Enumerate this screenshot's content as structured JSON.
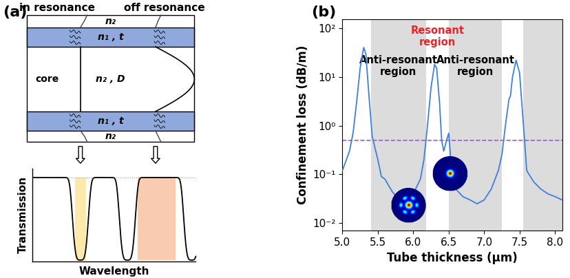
{
  "chart_data": {
    "type": "line",
    "panel_label": "(b)",
    "xlabel": "Tube thickness (μm)",
    "ylabel": "Confinement loss (dB/m)",
    "log": "y",
    "color": "#3d7fd9",
    "x": [
      5.0,
      5.1,
      5.15,
      5.2,
      5.25,
      5.3,
      5.33,
      5.37,
      5.42,
      5.5,
      5.55,
      5.6,
      5.7,
      5.8,
      5.9,
      6.0,
      6.1,
      6.15,
      6.2,
      6.25,
      6.3,
      6.33,
      6.37,
      6.4,
      6.43,
      6.47,
      6.5,
      6.52,
      6.55,
      6.6,
      6.7,
      6.8,
      6.9,
      7.0,
      7.1,
      7.2,
      7.25,
      7.3,
      7.35,
      7.37,
      7.4,
      7.45,
      7.5,
      7.53,
      7.57,
      7.6,
      7.7,
      7.8,
      7.9,
      8.0,
      8.1
    ],
    "values": [
      0.12,
      0.3,
      0.7,
      3,
      15,
      40,
      30,
      5,
      0.6,
      0.2,
      0.09,
      0.08,
      0.045,
      0.03,
      0.03,
      0.04,
      0.08,
      0.2,
      1,
      6,
      18,
      15,
      3,
      0.5,
      0.3,
      0.5,
      0.7,
      0.3,
      0.08,
      0.05,
      0.035,
      0.03,
      0.025,
      0.03,
      0.05,
      0.12,
      0.25,
      1,
      3.5,
      4,
      10,
      22,
      12,
      3,
      0.5,
      0.12,
      0.07,
      0.05,
      0.04,
      0.035,
      0.03
    ],
    "xlim": [
      5.0,
      8.1
    ],
    "xticks": [
      5.0,
      5.5,
      6.0,
      6.5,
      7.0,
      7.5,
      8.0
    ],
    "ylim": [
      0.007,
      150
    ],
    "yticks": [
      {
        "value": 0.01,
        "label": "10⁻²"
      },
      {
        "value": 0.1,
        "label": "10⁻¹"
      },
      {
        "value": 1,
        "label": "10⁰"
      },
      {
        "value": 10,
        "label": "10¹"
      },
      {
        "value": 100,
        "label": "10²"
      }
    ],
    "reference_line": {
      "value": 0.5,
      "color": "#9b59d0",
      "line_style": "dashed"
    },
    "regions": [
      {
        "label": "Anti-resonant\nregion",
        "range": [
          5.4,
          6.18
        ],
        "shaded": true
      },
      {
        "label": "Resonant\nregion",
        "range": [
          6.18,
          6.5
        ],
        "shaded": false,
        "color": "#e8242a"
      },
      {
        "label": "Anti-resonant\nregion",
        "range": [
          6.5,
          7.25
        ],
        "shaded": true
      },
      {
        "range": [
          7.55,
          8.1
        ],
        "shaded": true
      }
    ]
  },
  "diagram": {
    "panel_label": "(a)",
    "in_resonance": "in resonance",
    "off_resonance": "off resonance",
    "cladding": "n₂",
    "wall": "n₁ , t",
    "core_label": "core",
    "core": "n₂ , D",
    "transmission_ylabel": "Transmission",
    "transmission_xlabel": "Wavelength"
  }
}
